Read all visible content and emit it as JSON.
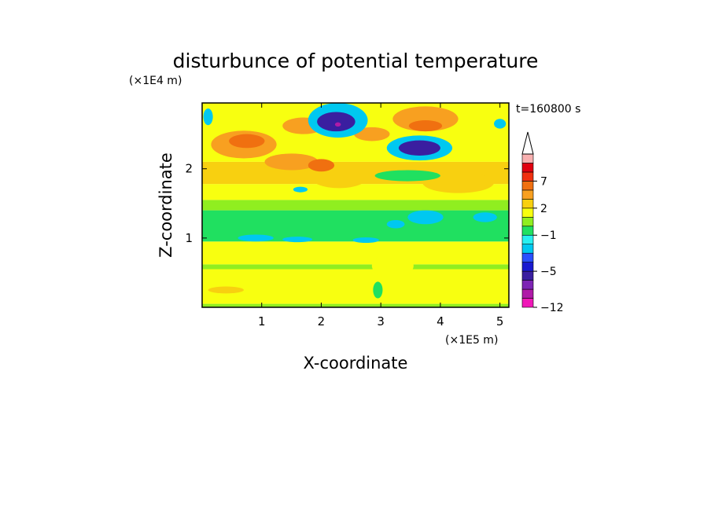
{
  "chart_data": {
    "type": "heatmap",
    "title": "disturbunce of potential temperature",
    "xlabel": "X-coordinate",
    "ylabel": "Z-coordinate",
    "x_unit_label": "(×1E5 m)",
    "y_unit_label": "(×1E4 m)",
    "time_label": "t=160800 s",
    "xlim": [
      0,
      5.15
    ],
    "ylim": [
      0,
      2.95
    ],
    "x_ticks": [
      1,
      2,
      3,
      4,
      5
    ],
    "x_tick_labels": [
      "1",
      "2",
      "3",
      "4",
      "5"
    ],
    "y_ticks": [
      1,
      2
    ],
    "y_tick_labels": [
      "1",
      "2"
    ],
    "colorbar": {
      "levels": [
        -12,
        -10,
        -8,
        -6,
        -5,
        -4,
        -3,
        -2,
        -1,
        0,
        1,
        2,
        3,
        5,
        7,
        8,
        9,
        10
      ],
      "labeled_levels": [
        -12,
        -5,
        -1,
        2,
        7
      ],
      "labels": [
        "−12",
        "−5",
        "−1",
        "2",
        "7"
      ],
      "colors": [
        "#f018b8",
        "#b01aa8",
        "#7d24b4",
        "#3a1ea0",
        "#1a1ad0",
        "#2a50ff",
        "#00c8f0",
        "#28f0f0",
        "#20e060",
        "#90ee20",
        "#f8ff10",
        "#f8d010",
        "#f8a020",
        "#f07010",
        "#f03010",
        "#e00010",
        "#f8b0b0"
      ],
      "extend": "max"
    },
    "bands": [
      {
        "z0": 0.0,
        "z1": 0.05,
        "value": 0.5
      },
      {
        "z0": 0.05,
        "z1": 0.55,
        "value": 1.5
      },
      {
        "z0": 0.55,
        "z1": 0.62,
        "value": 0.5
      },
      {
        "z0": 0.62,
        "z1": 0.95,
        "value": 1.5
      },
      {
        "z0": 0.95,
        "z1": 1.4,
        "value": -0.5
      },
      {
        "z0": 1.4,
        "z1": 1.55,
        "value": 0.5
      },
      {
        "z0": 1.55,
        "z1": 1.78,
        "value": 1.5
      },
      {
        "z0": 1.78,
        "z1": 2.1,
        "value": 2.5
      },
      {
        "z0": 2.1,
        "z1": 2.95,
        "value": 1.5
      }
    ],
    "blobs": [
      {
        "x": 2.3,
        "z": 1.9,
        "rx": 0.5,
        "rz": 0.18,
        "value": 2.5
      },
      {
        "x": 4.3,
        "z": 1.8,
        "rx": 0.6,
        "rz": 0.15,
        "value": 2.5
      },
      {
        "x": 0.7,
        "z": 2.35,
        "rx": 0.55,
        "rz": 0.2,
        "value": 4
      },
      {
        "x": 0.75,
        "z": 2.4,
        "rx": 0.3,
        "rz": 0.1,
        "value": 6
      },
      {
        "x": 1.7,
        "z": 2.62,
        "rx": 0.35,
        "rz": 0.12,
        "value": 4
      },
      {
        "x": 1.5,
        "z": 2.1,
        "rx": 0.45,
        "rz": 0.12,
        "value": 4
      },
      {
        "x": 2.0,
        "z": 2.05,
        "rx": 0.22,
        "rz": 0.09,
        "value": 6
      },
      {
        "x": 3.75,
        "z": 2.72,
        "rx": 0.55,
        "rz": 0.18,
        "value": 4
      },
      {
        "x": 3.75,
        "z": 2.62,
        "rx": 0.28,
        "rz": 0.08,
        "value": 6
      },
      {
        "x": 2.85,
        "z": 2.5,
        "rx": 0.3,
        "rz": 0.1,
        "value": 4
      },
      {
        "x": 2.28,
        "z": 2.7,
        "rx": 0.5,
        "rz": 0.25,
        "value": -3
      },
      {
        "x": 2.25,
        "z": 2.68,
        "rx": 0.32,
        "rz": 0.14,
        "value": -5.5
      },
      {
        "x": 2.28,
        "z": 2.64,
        "rx": 0.05,
        "rz": 0.03,
        "value": -9
      },
      {
        "x": 3.65,
        "z": 2.3,
        "rx": 0.55,
        "rz": 0.18,
        "value": -3
      },
      {
        "x": 3.65,
        "z": 2.3,
        "rx": 0.35,
        "rz": 0.11,
        "value": -5.5
      },
      {
        "x": 3.45,
        "z": 1.9,
        "rx": 0.55,
        "rz": 0.08,
        "value": -0.5
      },
      {
        "x": 0.1,
        "z": 2.75,
        "rx": 0.08,
        "rz": 0.12,
        "value": -3
      },
      {
        "x": 5.0,
        "z": 2.65,
        "rx": 0.1,
        "rz": 0.07,
        "value": -3
      },
      {
        "x": 3.75,
        "z": 1.3,
        "rx": 0.3,
        "rz": 0.1,
        "value": -3
      },
      {
        "x": 4.75,
        "z": 1.3,
        "rx": 0.2,
        "rz": 0.07,
        "value": -3
      },
      {
        "x": 0.9,
        "z": 1.0,
        "rx": 0.3,
        "rz": 0.05,
        "value": -3
      },
      {
        "x": 1.6,
        "z": 0.98,
        "rx": 0.25,
        "rz": 0.04,
        "value": -3
      },
      {
        "x": 2.75,
        "z": 0.97,
        "rx": 0.22,
        "rz": 0.04,
        "value": -3
      },
      {
        "x": 3.25,
        "z": 1.2,
        "rx": 0.15,
        "rz": 0.06,
        "value": -3
      },
      {
        "x": 1.65,
        "z": 1.7,
        "rx": 0.12,
        "rz": 0.04,
        "value": -3
      },
      {
        "x": 3.2,
        "z": 0.6,
        "rx": 0.35,
        "rz": 0.18,
        "value": 1.5
      },
      {
        "x": 2.95,
        "z": 0.25,
        "rx": 0.08,
        "rz": 0.12,
        "value": -0.5
      },
      {
        "x": 0.4,
        "z": 0.25,
        "rx": 0.3,
        "rz": 0.05,
        "value": 2.5
      }
    ]
  }
}
